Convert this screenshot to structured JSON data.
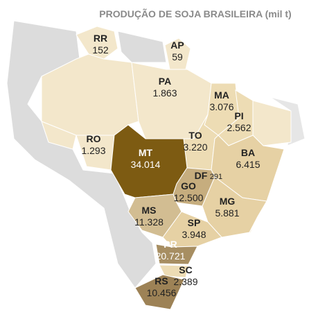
{
  "title": "PRODUÇÃO DE SOJA BRASILEIRA (mil t)",
  "states": [
    {
      "code": "RR",
      "value": 152,
      "label": "152",
      "color": "#f3e7cb"
    },
    {
      "code": "AP",
      "value": 59,
      "label": "59",
      "color": "#f3e7cb"
    },
    {
      "code": "PA",
      "value": 1863,
      "label": "1.863",
      "color": "#f3e7cb"
    },
    {
      "code": "MA",
      "value": 3076,
      "label": "3.076",
      "color": "#eddcb4"
    },
    {
      "code": "PI",
      "value": 2562,
      "label": "2.562",
      "color": "#eddcb4"
    },
    {
      "code": "TO",
      "value": 3220,
      "label": "3.220",
      "color": "#eddcb4"
    },
    {
      "code": "RO",
      "value": 1293,
      "label": "1.293",
      "color": "#f3e7cb"
    },
    {
      "code": "MT",
      "value": 34014,
      "label": "34.014",
      "color": "#7d5b12"
    },
    {
      "code": "BA",
      "value": 6415,
      "label": "6.415",
      "color": "#e6d1a4"
    },
    {
      "code": "DF",
      "value": 291,
      "label": "291",
      "color": "#e6d1a4"
    },
    {
      "code": "GO",
      "value": 12500,
      "label": "12.500",
      "color": "#c6ad7e"
    },
    {
      "code": "MG",
      "value": 5881,
      "label": "5.881",
      "color": "#e6d1a4"
    },
    {
      "code": "MS",
      "value": 11328,
      "label": "11.328",
      "color": "#d2bd92"
    },
    {
      "code": "SP",
      "value": 3948,
      "label": "3.948",
      "color": "#e6d1a4"
    },
    {
      "code": "PR",
      "value": 20721,
      "label": "20.721",
      "color": "#a78e62"
    },
    {
      "code": "SC",
      "value": 2389,
      "label": "2.389",
      "color": "#eddcb4"
    },
    {
      "code": "RS",
      "value": 10456,
      "label": "10.456",
      "color": "#9d8256"
    }
  ]
}
